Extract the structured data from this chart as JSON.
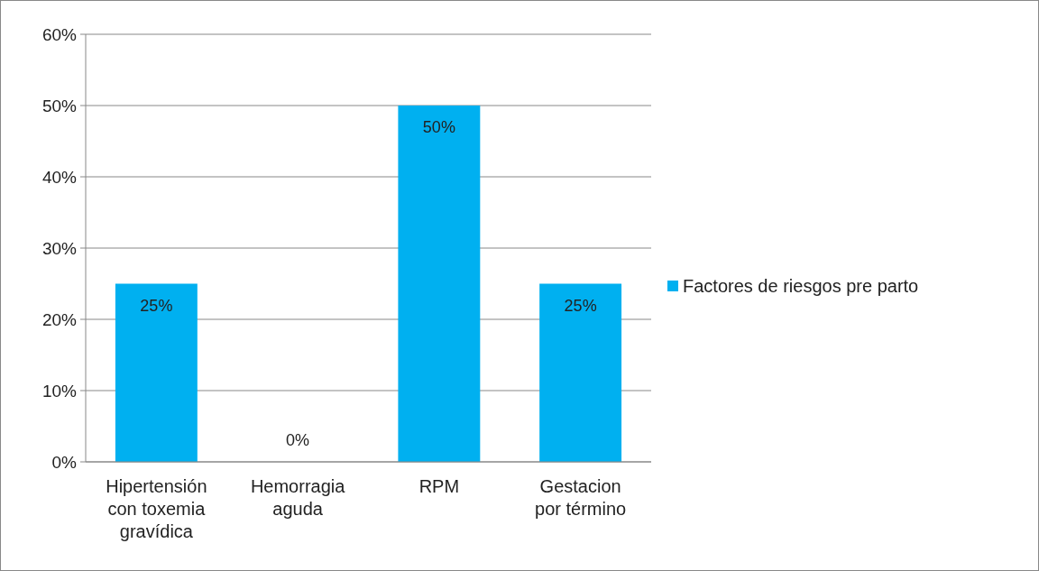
{
  "chart_data": {
    "type": "bar",
    "categories": [
      "Hipertensión con toxemia gravídica",
      "Hemorragia aguda",
      "RPM",
      "Gestacion por término"
    ],
    "series": [
      {
        "name": "Factores de riesgos pre parto",
        "color": "#00b0f0",
        "values": [
          25,
          0,
          50,
          25
        ],
        "value_labels": [
          "25%",
          "0%",
          "50%",
          "25%"
        ]
      }
    ],
    "ylim": [
      0,
      60
    ],
    "yticks": [
      {
        "value": 0,
        "label": "0%"
      },
      {
        "value": 10,
        "label": "10%"
      },
      {
        "value": 20,
        "label": "20%"
      },
      {
        "value": 30,
        "label": "30%"
      },
      {
        "value": 40,
        "label": "40%"
      },
      {
        "value": 50,
        "label": "50%"
      },
      {
        "value": 60,
        "label": "60%"
      }
    ],
    "grid": "y",
    "legend": "right"
  }
}
